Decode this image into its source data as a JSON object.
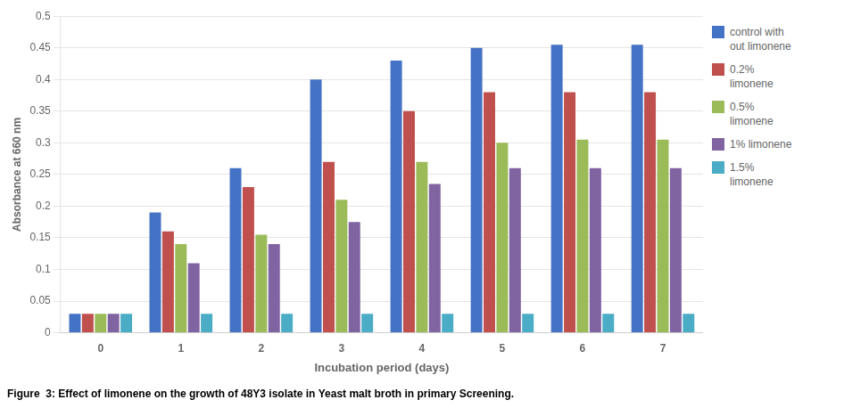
{
  "chart_data": {
    "type": "bar",
    "title": "Figure  3: Effect of limonene on the growth of 48Y3 isolate in Yeast malt broth in primary Screening.",
    "x_label": "Incubation period (days)",
    "y_label": "Absorbance at 660 nm",
    "categories": [
      "0",
      "1",
      "2",
      "3",
      "4",
      "5",
      "6",
      "7"
    ],
    "series": [
      {
        "name": "control with\nout limonene",
        "color": "#4472C4",
        "values": [
          0.03,
          0.19,
          0.26,
          0.4,
          0.43,
          0.45,
          0.455,
          0.455
        ]
      },
      {
        "name": "0.2%\nlimonene",
        "color": "#C0504D",
        "values": [
          0.03,
          0.16,
          0.23,
          0.27,
          0.35,
          0.38,
          0.38,
          0.38
        ]
      },
      {
        "name": "0.5%\nlimonene",
        "color": "#9BBB59",
        "values": [
          0.03,
          0.14,
          0.155,
          0.21,
          0.27,
          0.3,
          0.305,
          0.305
        ]
      },
      {
        "name": "1% limonene",
        "color": "#8064A2",
        "values": [
          0.03,
          0.11,
          0.14,
          0.175,
          0.235,
          0.26,
          0.26,
          0.26
        ]
      },
      {
        "name": "1.5%\nlimonene",
        "color": "#4BACC6",
        "values": [
          0.03,
          0.03,
          0.03,
          0.03,
          0.03,
          0.03,
          0.03,
          0.03
        ]
      }
    ],
    "ylim": [
      0,
      0.5
    ],
    "yticks": [
      0,
      0.05,
      0.1,
      0.15,
      0.2,
      0.25,
      0.3,
      0.35,
      0.4,
      0.45,
      0.5
    ],
    "grid": true,
    "legend": "right"
  }
}
